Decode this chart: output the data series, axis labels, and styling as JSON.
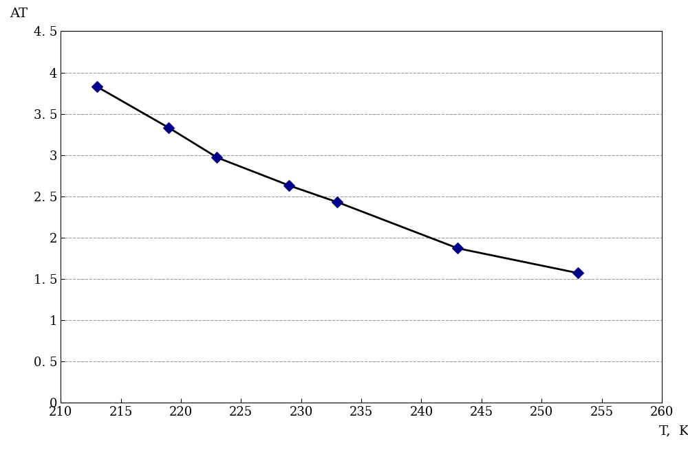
{
  "x_data": [
    213,
    219,
    223,
    229,
    233,
    243,
    253
  ],
  "y_data": [
    3.83,
    3.33,
    2.97,
    2.63,
    2.43,
    1.87,
    1.57
  ],
  "xlim": [
    210,
    260
  ],
  "ylim": [
    0,
    4.5
  ],
  "xticks": [
    210,
    215,
    220,
    225,
    230,
    235,
    240,
    245,
    250,
    255,
    260
  ],
  "yticks": [
    0,
    0.5,
    1,
    1.5,
    2,
    2.5,
    3,
    3.5,
    4,
    4.5
  ],
  "xlabel": "T,  K",
  "ylabel": "AT",
  "line_color": "#000000",
  "marker_color": "#00008B",
  "marker_style": "D",
  "marker_size": 8,
  "line_width": 2.0,
  "grid_color": "#999999",
  "grid_linestyle": "--",
  "background_color": "#ffffff",
  "tick_fontsize": 13,
  "label_fontsize": 14
}
